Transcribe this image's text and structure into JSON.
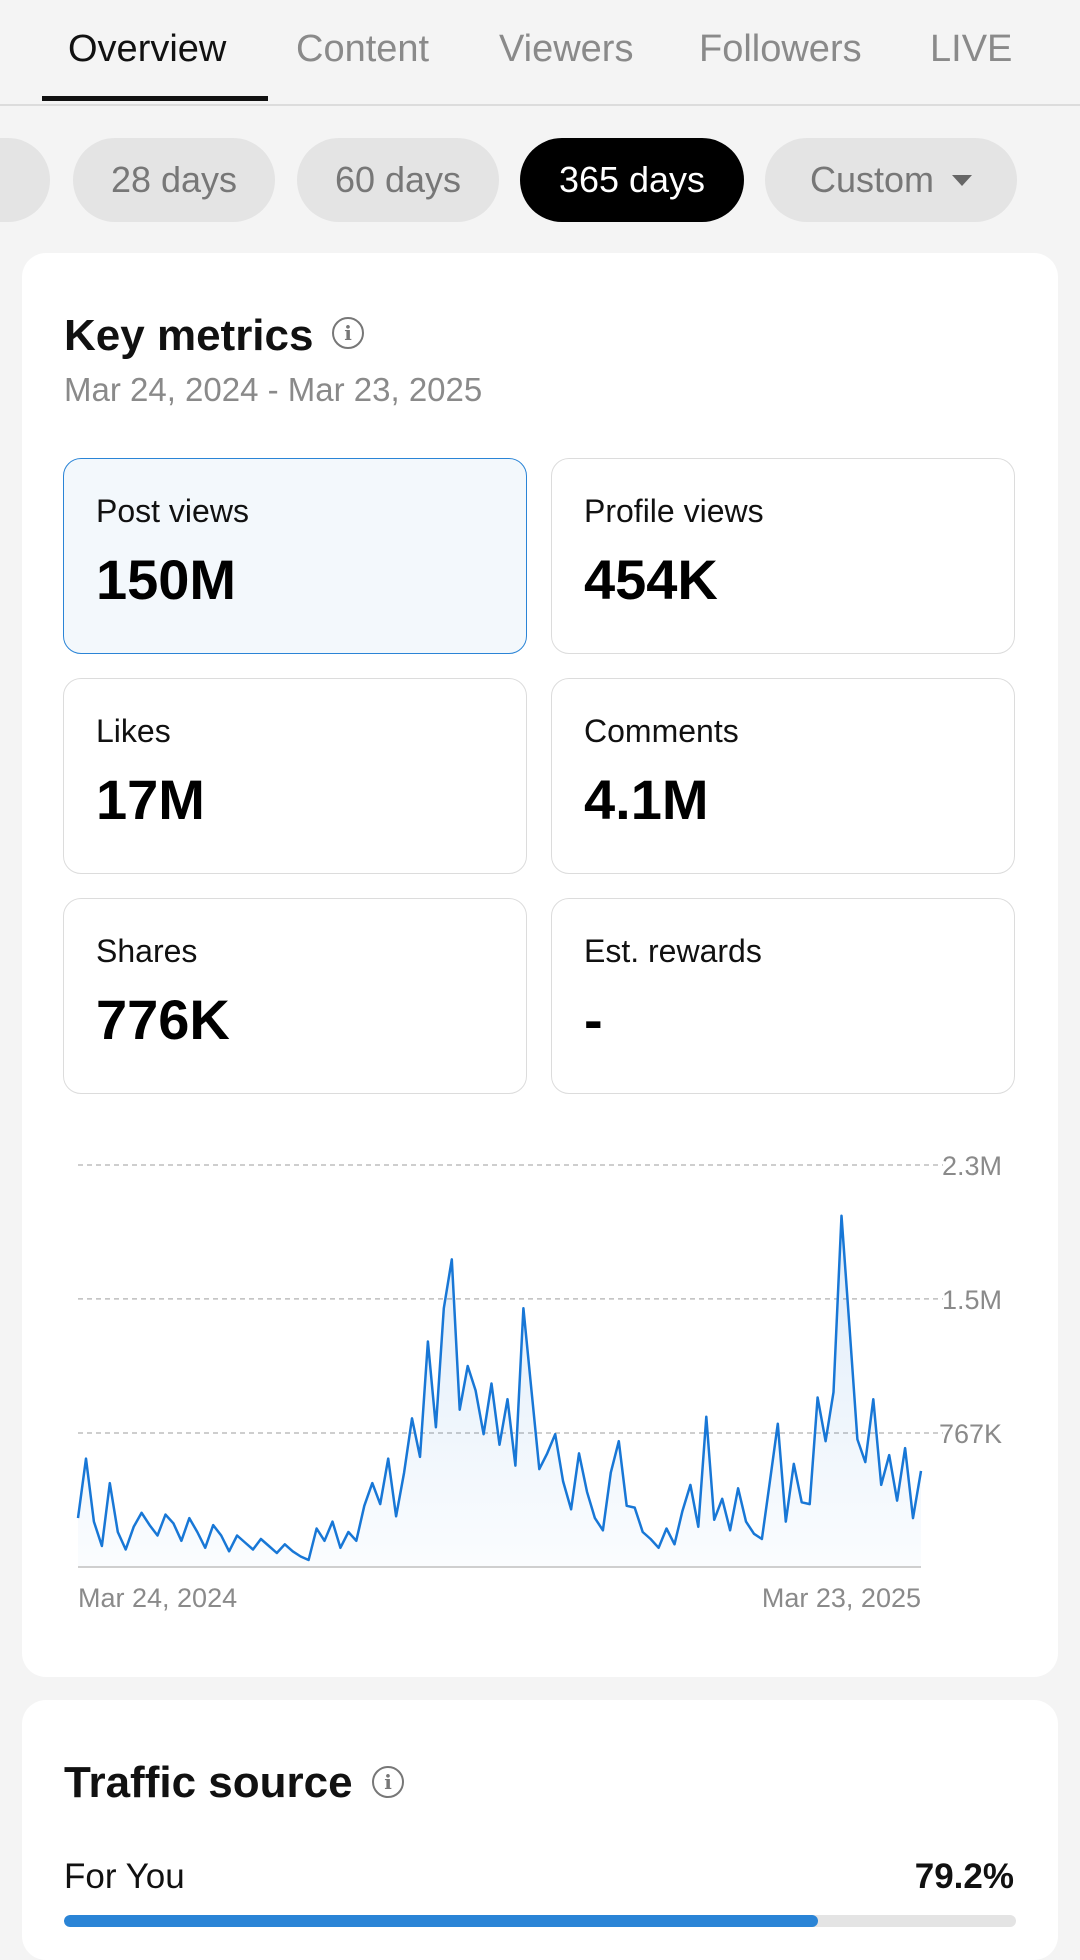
{
  "tabs": [
    {
      "label": "Overview",
      "active": true
    },
    {
      "label": "Content",
      "active": false
    },
    {
      "label": "Viewers",
      "active": false
    },
    {
      "label": "Followers",
      "active": false
    },
    {
      "label": "LIVE",
      "active": false
    }
  ],
  "range_pills": [
    {
      "label": "28 days",
      "active": false
    },
    {
      "label": "60 days",
      "active": false
    },
    {
      "label": "365 days",
      "active": true
    },
    {
      "label": "Custom",
      "active": false,
      "dropdown": true
    }
  ],
  "key_metrics": {
    "title": "Key metrics",
    "icon": "info-icon",
    "date_range": "Mar 24, 2024 - Mar 23, 2025",
    "metrics": [
      {
        "label": "Post views",
        "value": "150M",
        "selected": true
      },
      {
        "label": "Profile views",
        "value": "454K",
        "selected": false
      },
      {
        "label": "Likes",
        "value": "17M",
        "selected": false
      },
      {
        "label": "Comments",
        "value": "4.1M",
        "selected": false
      },
      {
        "label": "Shares",
        "value": "776K",
        "selected": false
      },
      {
        "label": "Est. rewards",
        "value": "-",
        "selected": false
      }
    ]
  },
  "chart_data": {
    "type": "area",
    "title": "",
    "xlabel": "",
    "ylabel": "",
    "x_tick_labels": [
      "Mar 24, 2024",
      "Mar 23, 2025"
    ],
    "y_tick_labels": [
      "2.3M",
      "1.5M",
      "767K"
    ],
    "y_ticks": [
      2300000,
      1534000,
      767000
    ],
    "ylim": [
      0,
      2300000
    ],
    "grid": true,
    "line_color": "#1877d6",
    "series": [
      {
        "values": [
          280000,
          620000,
          260000,
          120000,
          480000,
          200000,
          100000,
          230000,
          310000,
          240000,
          180000,
          300000,
          250000,
          150000,
          280000,
          200000,
          110000,
          240000,
          180000,
          90000,
          180000,
          140000,
          100000,
          160000,
          120000,
          80000,
          130000,
          90000,
          60000,
          40000,
          220000,
          150000,
          260000,
          110000,
          200000,
          150000,
          350000,
          480000,
          360000,
          620000,
          290000,
          540000,
          850000,
          630000,
          1290000,
          800000,
          1480000,
          1760000,
          900000,
          1150000,
          1010000,
          760000,
          1050000,
          700000,
          960000,
          580000,
          1480000,
          1020000,
          560000,
          650000,
          760000,
          490000,
          330000,
          650000,
          430000,
          280000,
          210000,
          540000,
          720000,
          350000,
          340000,
          200000,
          160000,
          110000,
          220000,
          130000,
          320000,
          470000,
          230000,
          860000,
          270000,
          390000,
          210000,
          450000,
          260000,
          190000,
          160000,
          490000,
          820000,
          260000,
          590000,
          370000,
          360000,
          970000,
          720000,
          1000000,
          2010000,
          1380000,
          730000,
          600000,
          960000,
          470000,
          640000,
          380000,
          680000,
          280000,
          550000
        ]
      }
    ]
  },
  "traffic_source": {
    "title": "Traffic source",
    "icon": "info-icon",
    "items": [
      {
        "label": "For You",
        "percent_label": "79.2%",
        "percent": 79.2
      }
    ]
  }
}
